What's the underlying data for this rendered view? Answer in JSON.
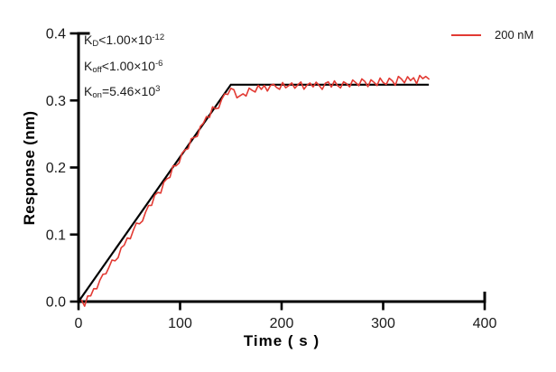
{
  "chart_data": {
    "type": "line",
    "title": "",
    "xlabel": "Time ( s )",
    "ylabel": "Response (nm)",
    "xlim": [
      0,
      400
    ],
    "ylim": [
      0,
      0.4
    ],
    "grid": false,
    "x_ticks": {
      "values": [
        0,
        100,
        200,
        300,
        400
      ],
      "labels": [
        "0",
        "100",
        "200",
        "300",
        "400"
      ]
    },
    "y_ticks": {
      "values": [
        0,
        0.1,
        0.2,
        0.3,
        0.4
      ],
      "labels": [
        "0.0",
        "0.1",
        "0.2",
        "0.3",
        "0.4"
      ]
    },
    "legend": {
      "position": "top-right",
      "entries": [
        {
          "label": "200 nM",
          "color": "#e23a33"
        }
      ]
    },
    "annotations": [
      {
        "base": "K",
        "sub": "D",
        "body": "<1.00×10",
        "exp": "-12"
      },
      {
        "base": "K",
        "sub": "off",
        "body": "<1.00×10",
        "exp": "-6"
      },
      {
        "base": "K",
        "sub": "on",
        "body": "=5.46×10",
        "exp": "3"
      }
    ],
    "fit_line": {
      "name": "kinetic-fit",
      "color": "#000000",
      "points": [
        [
          0,
          0
        ],
        [
          150,
          0.3235
        ],
        [
          345,
          0.3235
        ]
      ]
    },
    "series": [
      {
        "name": "200 nM",
        "color": "#e23a33",
        "sample_start": 3,
        "sample_step": 3,
        "sample_end": 345,
        "base_points": [
          [
            3,
            0
          ],
          [
            10,
            0.005
          ],
          [
            60,
            0.118
          ],
          [
            100,
            0.213
          ],
          [
            130,
            0.281
          ],
          [
            150,
            0.315
          ],
          [
            160,
            0.305
          ],
          [
            172,
            0.316
          ],
          [
            185,
            0.32
          ],
          [
            250,
            0.323
          ],
          [
            345,
            0.33
          ]
        ],
        "noise": [
          0.002,
          -0.009,
          0.004,
          -0.001,
          0.003,
          -0.004,
          0.002,
          0.004,
          -0.002,
          0.001,
          0.005,
          -0.003,
          -0.005,
          0.003,
          0.0,
          0.004,
          -0.004,
          0.002,
          0.006,
          -0.002,
          -0.005,
          0.001,
          0.004,
          -0.003,
          0.005,
          0.002,
          -0.006,
          0.003,
          0.001,
          -0.004,
          0.006,
          -0.001,
          -0.004,
          0.004,
          0.002,
          -0.003,
          0.005,
          0.0,
          -0.005,
          0.003,
          0.001,
          0.004,
          -0.004,
          0.006,
          -0.002,
          -0.006,
          0.002,
          0.005,
          -0.001,
          0.003,
          0.004,
          -0.005,
          0.001,
          0.003,
          -0.003,
          0.006,
          0.0,
          -0.004,
          0.005,
          -0.002,
          0.003,
          -0.006,
          0.002,
          0.004,
          -0.001,
          -0.004,
          0.006,
          -0.002,
          0.001,
          0.005,
          -0.003,
          0.002,
          0.006,
          -0.005,
          0.001,
          0.004,
          -0.002,
          0.005,
          0.0,
          -0.006,
          0.003,
          0.005,
          -0.003,
          0.006,
          -0.001,
          -0.005,
          0.004,
          0.001,
          -0.004,
          0.006,
          0.002,
          -0.003,
          0.007,
          0.003,
          -0.005,
          0.005,
          0.001,
          -0.004,
          0.007,
          0.0,
          -0.003,
          0.006,
          0.002,
          -0.005,
          0.008,
          0.004,
          -0.002,
          0.007,
          0.001,
          0.005,
          -0.004,
          0.008,
          0.003,
          0.006,
          0.002
        ]
      }
    ]
  },
  "style_colors": {
    "axis": "#000000",
    "tick_text": "#1a1a1a"
  }
}
